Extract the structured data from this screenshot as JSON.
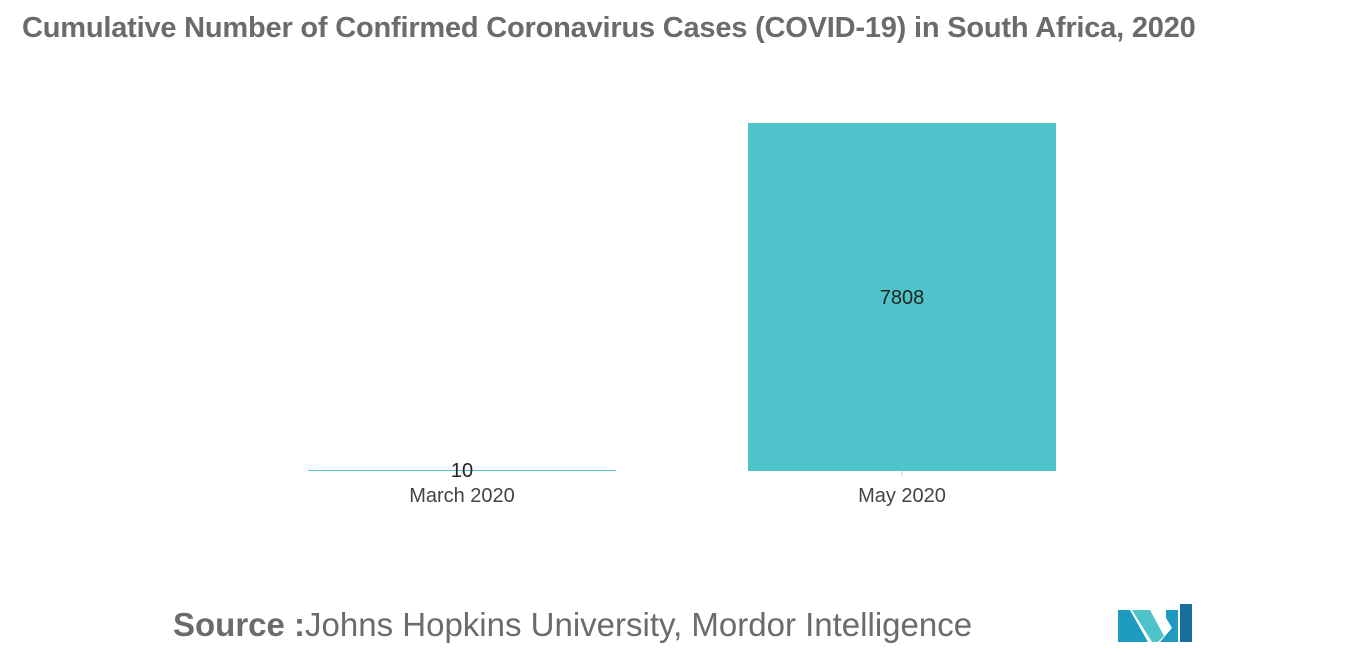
{
  "title": "Cumulative Number of Confirmed Coronavirus Cases (COVID-19) in South Africa, 2020",
  "source": {
    "label": "Source :",
    "text": "Johns Hopkins University, Mordor Intelligence"
  },
  "logo": {
    "icon": "mordor-intelligence-logo-icon",
    "colors": [
      "#1f9bbf",
      "#4fc3ca",
      "#1a6f9e"
    ]
  },
  "chart_data": {
    "type": "bar",
    "title": "Cumulative Number of Confirmed Coronavirus Cases (COVID-19) in South Africa, 2020",
    "xlabel": "",
    "ylabel": "",
    "categories": [
      "March 2020",
      "May 2020"
    ],
    "values": [
      10,
      7808
    ],
    "data_labels": [
      "10",
      "7808"
    ],
    "ylim": [
      0,
      7808
    ],
    "grid": false,
    "legend": "none",
    "bar_color": "#4fc3ca"
  }
}
